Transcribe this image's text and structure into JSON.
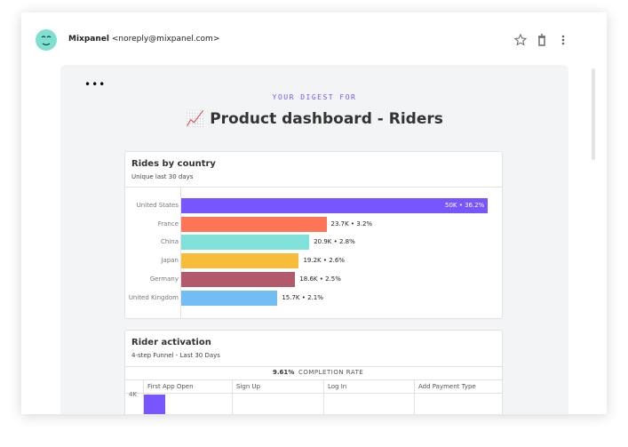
{
  "email": {
    "sender_name": "Mixpanel",
    "sender_address": "<noreply@mixpanel.com>"
  },
  "digest": {
    "kicker": "YOUR DIGEST FOR",
    "title": "📈 Product dashboard - Riders"
  },
  "rides_card": {
    "title": "Rides by country",
    "subtitle": "Unique last 30 days",
    "chart_data": {
      "type": "bar",
      "orientation": "horizontal",
      "categories": [
        "United States",
        "France",
        "China",
        "Japan",
        "Germany",
        "United Kingdom"
      ],
      "values": [
        50000,
        23700,
        20900,
        19200,
        18600,
        15700
      ],
      "value_labels": [
        "50K • 36.2%",
        "23.7K • 3.2%",
        "20.9K • 2.8%",
        "19.2K • 2.6%",
        "18.6K • 2.5%",
        "15.7K • 2.1%"
      ],
      "colors": [
        "#7856ff",
        "#ff7557",
        "#80e1d9",
        "#f8bc3b",
        "#b2596e",
        "#72bef4"
      ]
    }
  },
  "activation_card": {
    "title": "Rider activation",
    "subtitle": "4-step Funnel - Last 30 Days",
    "completion_value": "9.61%",
    "completion_label": "COMPLETION RATE",
    "steps": [
      "First App Open",
      "Sign Up",
      "Log In",
      "Add Payment Type"
    ],
    "y_tick": "4K"
  }
}
